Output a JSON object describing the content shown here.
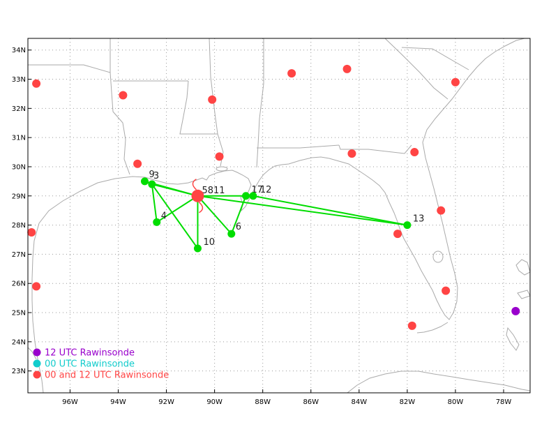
{
  "map": {
    "lat_labels": [
      "34N",
      "33N",
      "32N",
      "31N",
      "30N",
      "29N",
      "28N",
      "27N",
      "26N",
      "25N",
      "24N",
      "23N"
    ],
    "lon_labels": [
      "96W",
      "94W",
      "92W",
      "90W",
      "88W",
      "86W",
      "84W",
      "82W",
      "80W",
      "78W"
    ],
    "lon_min": -97.75,
    "lon_max": -76.9,
    "lat_min": 22.25,
    "lat_max": 34.4,
    "colors": {
      "coast": "#aaaaaa",
      "grid": "#999999",
      "track": "#00dd00",
      "red": "#ff4444",
      "purple": "#9900cc",
      "cyan": "#11cccc"
    }
  },
  "legend": [
    {
      "label": "12 UTC Rawinsonde",
      "color": "#9900cc"
    },
    {
      "label": "00 UTC Rawinsonde",
      "color": "#11cccc"
    },
    {
      "label": "00 and 12 UTC Rawinsonde",
      "color": "#ff4444"
    }
  ],
  "track_points": [
    {
      "id": "9",
      "label": "9",
      "lon": -92.9,
      "lat": 29.5
    },
    {
      "id": "3",
      "label": "3",
      "lon": -92.6,
      "lat": 29.4
    },
    {
      "id": "4",
      "label": "4",
      "lon": -92.4,
      "lat": 28.1
    },
    {
      "id": "10",
      "label": "10",
      "lon": -90.7,
      "lat": 27.2
    },
    {
      "id": "6",
      "label": "6",
      "lon": -89.3,
      "lat": 27.7
    },
    {
      "id": "17",
      "label": "17",
      "lon": -88.7,
      "lat": 29.0
    },
    {
      "id": "12",
      "label": "12",
      "lon": -88.4,
      "lat": 29.0
    },
    {
      "id": "13",
      "label": "13",
      "lon": -82.0,
      "lat": 28.0
    },
    {
      "id": "hub",
      "label": "5811",
      "lon": -90.7,
      "lat": 29.0
    }
  ],
  "track_segments": [
    [
      "hub",
      "9"
    ],
    [
      "hub",
      "3"
    ],
    [
      "9",
      "3"
    ],
    [
      "3",
      "4"
    ],
    [
      "4",
      "hub"
    ],
    [
      "3",
      "10"
    ],
    [
      "10",
      "hub"
    ],
    [
      "hub",
      "6"
    ],
    [
      "6",
      "17"
    ],
    [
      "hub",
      "17"
    ],
    [
      "17",
      "12"
    ],
    [
      "12",
      "13"
    ],
    [
      "hub",
      "13"
    ]
  ],
  "rawinsondes": [
    {
      "lon": -97.4,
      "lat": 32.85,
      "type": "00/12"
    },
    {
      "lon": -93.8,
      "lat": 32.45,
      "type": "00/12"
    },
    {
      "lon": -90.1,
      "lat": 32.3,
      "type": "00/12"
    },
    {
      "lon": -86.8,
      "lat": 33.2,
      "type": "00/12"
    },
    {
      "lon": -84.5,
      "lat": 33.35,
      "type": "00/12"
    },
    {
      "lon": -80.0,
      "lat": 32.9,
      "type": "00/12"
    },
    {
      "lon": -93.2,
      "lat": 30.1,
      "type": "00/12"
    },
    {
      "lon": -89.8,
      "lat": 30.35,
      "type": "00/12"
    },
    {
      "lon": -84.3,
      "lat": 30.45,
      "type": "00/12"
    },
    {
      "lon": -81.7,
      "lat": 30.5,
      "type": "00/12"
    },
    {
      "lon": -80.6,
      "lat": 28.5,
      "type": "00/12"
    },
    {
      "lon": -82.4,
      "lat": 27.7,
      "type": "00/12"
    },
    {
      "lon": -97.6,
      "lat": 27.75,
      "type": "00/12"
    },
    {
      "lon": -97.4,
      "lat": 25.9,
      "type": "00/12"
    },
    {
      "lon": -80.4,
      "lat": 25.75,
      "type": "00/12"
    },
    {
      "lon": -81.8,
      "lat": 24.55,
      "type": "00/12"
    },
    {
      "lon": -77.5,
      "lat": 25.05,
      "type": "12"
    }
  ]
}
